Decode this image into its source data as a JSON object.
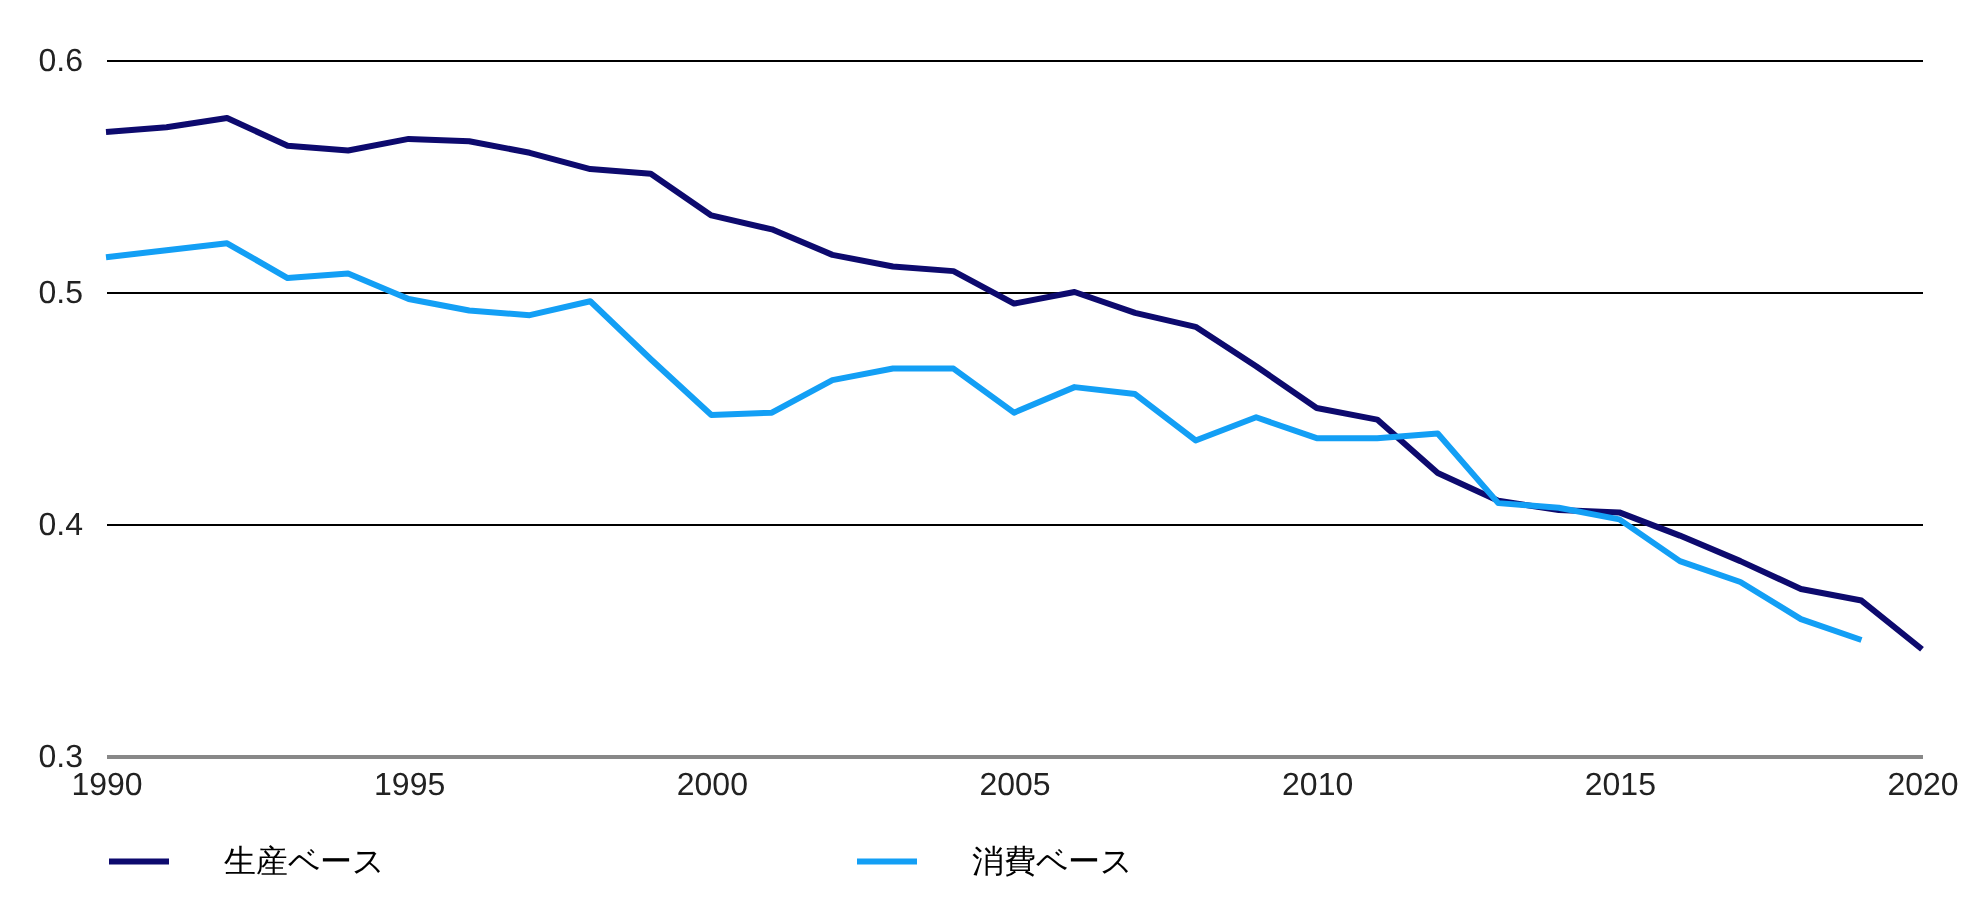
{
  "chart_data": {
    "type": "line",
    "x": [
      1990,
      1991,
      1992,
      1993,
      1994,
      1995,
      1996,
      1997,
      1998,
      1999,
      2000,
      2001,
      2002,
      2003,
      2004,
      2005,
      2006,
      2007,
      2008,
      2009,
      2010,
      2011,
      2012,
      2013,
      2014,
      2015,
      2016,
      2017,
      2018,
      2019,
      2020
    ],
    "series": [
      {
        "name": "生産ベース",
        "color": "#0d0a6e",
        "values": [
          0.569,
          0.571,
          0.575,
          0.563,
          0.561,
          0.566,
          0.565,
          0.56,
          0.553,
          0.551,
          0.533,
          0.527,
          0.516,
          0.511,
          0.509,
          0.495,
          0.5,
          0.491,
          0.485,
          0.468,
          0.45,
          0.445,
          0.422,
          0.41,
          0.406,
          0.405,
          0.395,
          0.384,
          0.372,
          0.367,
          0.346
        ]
      },
      {
        "name": "消費ベース",
        "color": "#139ff5",
        "values": [
          0.515,
          0.518,
          0.521,
          0.506,
          0.508,
          0.497,
          0.492,
          0.49,
          0.496,
          0.471,
          0.447,
          0.448,
          0.462,
          0.467,
          0.467,
          0.448,
          0.459,
          0.456,
          0.436,
          0.446,
          0.437,
          0.437,
          0.439,
          0.409,
          0.407,
          0.402,
          0.384,
          0.375,
          0.359,
          0.35,
          null
        ]
      }
    ],
    "xlim": [
      1990,
      2020
    ],
    "xticks": [
      1990,
      1995,
      2000,
      2005,
      2010,
      2015,
      2020
    ],
    "ylim": [
      0.3,
      0.6
    ],
    "yticks": [
      0.3,
      0.4,
      0.5,
      0.6
    ],
    "grid": "y",
    "legend": "bottom",
    "line_style": "solid",
    "marker": "none"
  }
}
